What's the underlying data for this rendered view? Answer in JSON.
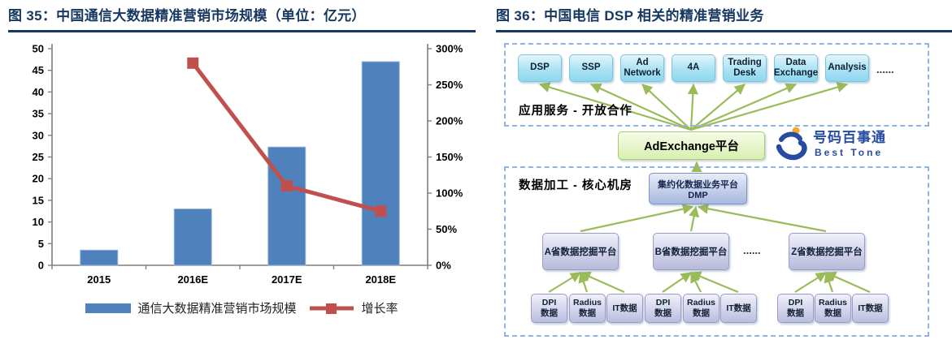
{
  "figure35": {
    "title": "图 35：中国通信大数据精准营销市场规模（单位：亿元）",
    "legend": [
      {
        "label": "通信大数据精准营销市场规模",
        "color": "#4f81bd",
        "type": "bar"
      },
      {
        "label": "增长率",
        "color": "#c0504d",
        "type": "line"
      }
    ],
    "chart_data": {
      "type": "bar",
      "combo": "bar+line",
      "categories": [
        "2015",
        "2016E",
        "2017E",
        "2018E"
      ],
      "series": [
        {
          "name": "通信大数据精准营销市场规模",
          "type": "bar",
          "axis": "left",
          "values": [
            3.5,
            13,
            27.3,
            47
          ],
          "color": "#4f81bd"
        },
        {
          "name": "增长率",
          "type": "line",
          "axis": "right",
          "values": [
            null,
            280,
            110,
            75
          ],
          "unit": "%",
          "color": "#c0504d"
        }
      ],
      "title": "中国通信大数据精准营销市场规模（单位：亿元）",
      "xlabel": "",
      "ylabel": "",
      "left_axis": {
        "min": 0,
        "max": 50,
        "step": 5
      },
      "right_axis": {
        "min": 0,
        "max": 300,
        "step": 50,
        "suffix": "%"
      },
      "grid": false,
      "legend_position": "bottom"
    }
  },
  "figure36": {
    "title": "图 36：中国电信 DSP 相关的精准营销业务",
    "app_section_label": "应用服务 - 开放合作",
    "app_boxes": [
      "DSP",
      "SSP",
      "Ad\nNetwork",
      "4A",
      "Trading\nDesk",
      "Data\nExchange",
      "Analysis"
    ],
    "app_ellipsis": "......",
    "adexchange_label": "AdExchange平台",
    "logo": {
      "cn": "号码百事通",
      "en": "Best Tone"
    },
    "data_section_label": "数据加工 - 核心机房",
    "dmp_label": "集约化数据业务平台DMP",
    "province_boxes": [
      "A省数据挖掘平台",
      "B省数据挖掘平台",
      "Z省数据挖掘平台"
    ],
    "province_ellipsis": "......",
    "data_sources": [
      "DPI\n数据",
      "Radius\n数据",
      "IT数据"
    ],
    "colors": {
      "dashed_border": "#8db4e2",
      "connector_green": "#9bbb59",
      "app_box_fill": "#aae2f3",
      "adexchange_fill": "#d8efad",
      "dmp_fill": "#a7b8de",
      "province_fill": "#b9badc",
      "logo_blue": "#274b9f",
      "logo_orange": "#f6a623"
    }
  }
}
